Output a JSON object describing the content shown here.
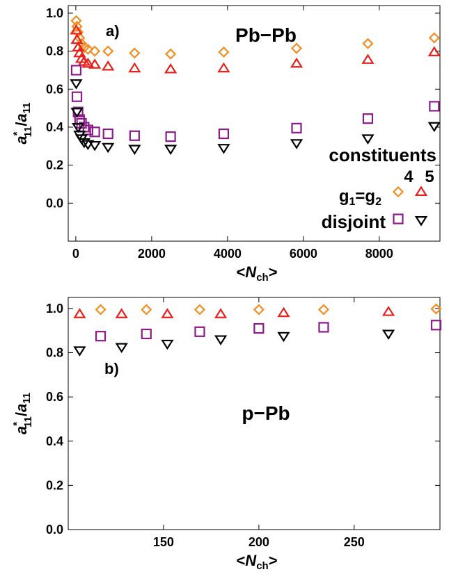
{
  "chart_data": [
    {
      "type": "scatter",
      "panel_label": "a)",
      "system_label": "Pb−Pb",
      "xlabel": "<N",
      "xlabel_sub": "ch",
      "xlabel_close": ">",
      "ylabel": "a",
      "ylabel_sup": "*",
      "ylabel_sub": "11",
      "ylabel_denom": "/a",
      "ylabel_denom_sub": "11",
      "xlim": [
        -200,
        9600
      ],
      "ylim": [
        -0.2,
        1.04
      ],
      "xticks": [
        "0",
        "2000",
        "4000",
        "6000",
        "8000"
      ],
      "xtick_values": [
        0,
        2000,
        4000,
        6000,
        8000
      ],
      "yticks": [
        "0.0",
        "0.2",
        "0.4",
        "0.6",
        "0.8",
        "1.0"
      ],
      "ytick_values": [
        0.0,
        0.2,
        0.4,
        0.6,
        0.8,
        1.0
      ],
      "legend": {
        "title": "constituents",
        "columns": [
          "4",
          "5"
        ],
        "rows": [
          {
            "label": "g",
            "sub1": "1",
            "eq": "=g",
            "sub2": "2"
          },
          {
            "label": "disjoint"
          }
        ]
      },
      "series": [
        {
          "marker": "diamond",
          "color": "#f28c1f",
          "x": [
            10,
            30,
            60,
            100,
            150,
            220,
            320,
            500,
            850,
            1550,
            2500,
            3900,
            5820,
            7700,
            9450
          ],
          "y": [
            0.96,
            0.93,
            0.9,
            0.87,
            0.84,
            0.82,
            0.81,
            0.8,
            0.8,
            0.79,
            0.785,
            0.795,
            0.815,
            0.84,
            0.87
          ]
        },
        {
          "marker": "triangle-up",
          "color": "#e8201c",
          "x": [
            10,
            30,
            60,
            100,
            150,
            220,
            320,
            500,
            850,
            1550,
            2500,
            3900,
            5820,
            7700,
            9450
          ],
          "y": [
            0.91,
            0.86,
            0.82,
            0.79,
            0.76,
            0.745,
            0.735,
            0.73,
            0.72,
            0.71,
            0.705,
            0.71,
            0.735,
            0.755,
            0.795
          ]
        },
        {
          "marker": "square",
          "color": "#8b1a8b",
          "x": [
            10,
            30,
            60,
            100,
            150,
            220,
            320,
            500,
            850,
            1550,
            2500,
            3900,
            5820,
            7700,
            9450
          ],
          "y": [
            0.7,
            0.56,
            0.48,
            0.44,
            0.42,
            0.4,
            0.385,
            0.375,
            0.365,
            0.355,
            0.35,
            0.365,
            0.395,
            0.445,
            0.51
          ]
        },
        {
          "marker": "triangle-down",
          "color": "#000000",
          "x": [
            10,
            30,
            60,
            100,
            150,
            220,
            320,
            500,
            850,
            1550,
            2500,
            3900,
            5820,
            7700,
            9450
          ],
          "y": [
            0.63,
            0.48,
            0.4,
            0.36,
            0.34,
            0.32,
            0.31,
            0.305,
            0.295,
            0.285,
            0.285,
            0.29,
            0.315,
            0.34,
            0.405
          ]
        }
      ]
    },
    {
      "type": "scatter",
      "panel_label": "b)",
      "system_label": "p−Pb",
      "xlabel": "<N",
      "xlabel_sub": "ch",
      "xlabel_close": ">",
      "ylabel": "a",
      "ylabel_sup": "*",
      "ylabel_sub": "11",
      "ylabel_denom": "/a",
      "ylabel_denom_sub": "11",
      "xlim": [
        100,
        295
      ],
      "ylim": [
        0.0,
        1.05
      ],
      "xticks": [
        "150",
        "200",
        "250"
      ],
      "xtick_values": [
        150,
        200,
        250
      ],
      "yticks": [
        "0.0",
        "0.2",
        "0.4",
        "0.6",
        "0.8",
        "1.0"
      ],
      "ytick_values": [
        0.0,
        0.2,
        0.4,
        0.6,
        0.8,
        1.0
      ],
      "series": [
        {
          "marker": "diamond",
          "color": "#f28c1f",
          "x": [
            117,
            141,
            169,
            200,
            234,
            293
          ],
          "y": [
            0.995,
            0.995,
            0.995,
            0.995,
            0.995,
            0.998
          ]
        },
        {
          "marker": "triangle-up",
          "color": "#e8201c",
          "x": [
            106,
            128,
            152,
            180,
            213,
            268
          ],
          "y": [
            0.975,
            0.975,
            0.975,
            0.975,
            0.98,
            0.985
          ]
        },
        {
          "marker": "square",
          "color": "#8b1a8b",
          "x": [
            117,
            141,
            169,
            200,
            234,
            293
          ],
          "y": [
            0.875,
            0.885,
            0.895,
            0.91,
            0.915,
            0.925
          ]
        },
        {
          "marker": "triangle-down",
          "color": "#000000",
          "x": [
            106,
            128,
            152,
            180,
            213,
            268
          ],
          "y": [
            0.81,
            0.825,
            0.84,
            0.86,
            0.875,
            0.885
          ]
        }
      ]
    }
  ]
}
